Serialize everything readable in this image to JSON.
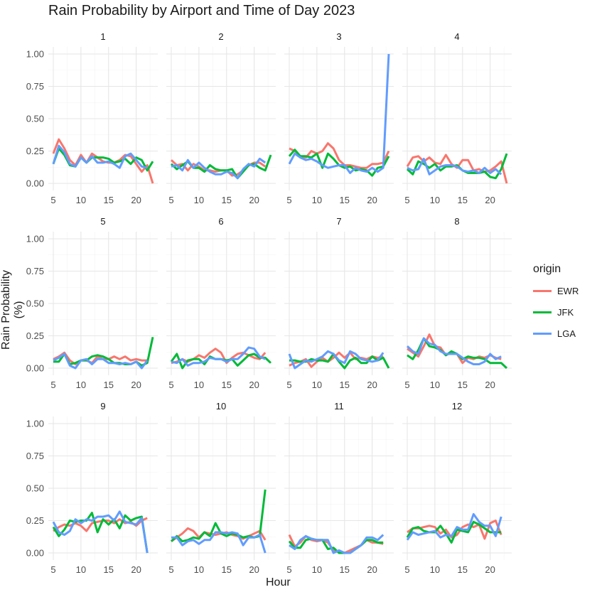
{
  "chart_data": {
    "type": "line",
    "title": "Rain Probability by Airport and Time of Day 2023",
    "xlabel": "Hour",
    "ylabel": "Rain Probability (%)",
    "xlim": [
      5,
      23
    ],
    "ylim": [
      0,
      1.0
    ],
    "x_ticks": [
      5,
      10,
      15,
      20
    ],
    "y_ticks": [
      "0.00",
      "0.25",
      "0.50",
      "0.75",
      "1.00"
    ],
    "grid": true,
    "legend": {
      "title": "origin",
      "placement": "right"
    },
    "hours": [
      5,
      6,
      7,
      8,
      9,
      10,
      11,
      12,
      13,
      14,
      15,
      16,
      17,
      18,
      19,
      20,
      21,
      22,
      23
    ],
    "series_names": [
      "EWR",
      "JFK",
      "LGA"
    ],
    "colors": {
      "EWR": "#F8766D",
      "JFK": "#00BA38",
      "LGA": "#619CFF"
    },
    "panels": [
      {
        "label": "1",
        "EWR": [
          0.23,
          0.34,
          0.27,
          0.18,
          0.14,
          0.22,
          0.16,
          0.23,
          0.2,
          0.17,
          0.16,
          0.16,
          0.18,
          0.22,
          0.21,
          0.15,
          0.09,
          0.14,
          0.0
        ],
        "JFK": [
          0.15,
          0.27,
          0.22,
          0.14,
          0.13,
          0.2,
          0.16,
          0.2,
          0.2,
          0.2,
          0.19,
          0.16,
          0.17,
          0.19,
          0.15,
          0.2,
          0.18,
          0.1,
          0.17
        ],
        "LGA": [
          0.15,
          0.29,
          0.24,
          0.15,
          0.13,
          0.2,
          0.16,
          0.21,
          0.16,
          0.16,
          0.17,
          0.15,
          0.12,
          0.21,
          0.23,
          0.18,
          0.13,
          0.12,
          null
        ]
      },
      {
        "label": "2",
        "EWR": [
          0.18,
          0.14,
          0.15,
          0.1,
          0.15,
          0.13,
          0.1,
          0.1,
          0.09,
          0.1,
          0.1,
          0.06,
          0.07,
          0.1,
          0.14,
          0.16,
          0.16,
          0.13,
          null
        ],
        "JFK": [
          0.15,
          0.11,
          0.14,
          0.17,
          0.12,
          0.12,
          0.09,
          0.14,
          0.11,
          0.1,
          0.1,
          0.11,
          0.04,
          0.09,
          0.14,
          0.15,
          0.12,
          0.1,
          0.22
        ],
        "LGA": [
          0.13,
          0.14,
          0.1,
          0.18,
          0.12,
          0.16,
          0.12,
          0.09,
          0.07,
          0.07,
          0.09,
          0.08,
          0.04,
          0.11,
          0.15,
          0.13,
          0.19,
          0.16,
          null
        ]
      },
      {
        "label": "3",
        "EWR": [
          0.27,
          0.25,
          0.21,
          0.2,
          0.25,
          0.23,
          0.25,
          0.31,
          0.27,
          0.18,
          0.14,
          0.14,
          0.13,
          0.12,
          0.12,
          0.15,
          0.15,
          0.16,
          0.25
        ],
        "JFK": [
          0.21,
          0.26,
          0.21,
          0.21,
          0.2,
          0.23,
          0.12,
          0.23,
          0.19,
          0.14,
          0.12,
          0.13,
          0.1,
          0.11,
          0.1,
          0.06,
          0.12,
          0.13,
          0.21
        ],
        "LGA": [
          0.15,
          0.23,
          0.2,
          0.18,
          0.19,
          0.17,
          0.14,
          0.12,
          0.13,
          0.14,
          0.14,
          0.08,
          0.12,
          0.1,
          0.09,
          0.12,
          0.09,
          0.12,
          1.0
        ]
      },
      {
        "label": "4",
        "EWR": [
          0.13,
          0.2,
          0.21,
          0.17,
          0.2,
          0.16,
          0.15,
          0.22,
          0.15,
          0.12,
          0.18,
          0.18,
          0.1,
          0.11,
          0.09,
          0.1,
          0.13,
          0.17,
          0.0
        ],
        "JFK": [
          0.11,
          0.07,
          0.17,
          0.15,
          0.12,
          0.15,
          0.1,
          0.13,
          0.13,
          0.14,
          0.1,
          0.08,
          0.08,
          0.08,
          0.09,
          0.05,
          0.04,
          0.11,
          0.23
        ],
        "LGA": [
          0.12,
          0.1,
          0.11,
          0.19,
          0.07,
          0.1,
          0.13,
          0.14,
          0.14,
          0.13,
          0.1,
          0.09,
          0.1,
          0.08,
          0.12,
          0.08,
          0.11,
          0.07,
          null
        ]
      },
      {
        "label": "5",
        "EWR": [
          0.07,
          0.09,
          0.12,
          0.06,
          0.03,
          0.06,
          0.06,
          0.04,
          0.09,
          0.07,
          0.07,
          0.09,
          0.07,
          0.09,
          0.06,
          0.07,
          0.06,
          0.06,
          null
        ],
        "JFK": [
          0.05,
          0.05,
          0.11,
          0.03,
          0.04,
          0.06,
          0.06,
          0.09,
          0.1,
          0.09,
          0.07,
          0.04,
          0.04,
          0.03,
          0.03,
          0.05,
          0.02,
          0.04,
          0.24
        ],
        "LGA": [
          0.06,
          0.08,
          0.11,
          0.02,
          0.0,
          0.06,
          0.07,
          0.03,
          0.07,
          0.07,
          0.04,
          0.04,
          0.03,
          0.04,
          0.03,
          0.05,
          0.0,
          0.06,
          null
        ]
      },
      {
        "label": "6",
        "EWR": [
          0.04,
          0.05,
          0.07,
          0.05,
          0.07,
          0.1,
          0.08,
          0.12,
          0.15,
          0.12,
          0.04,
          0.08,
          0.11,
          0.12,
          0.1,
          0.08,
          0.07,
          0.12,
          null
        ],
        "JFK": [
          0.05,
          0.11,
          0.0,
          0.06,
          0.07,
          0.07,
          0.03,
          0.09,
          0.07,
          0.07,
          0.06,
          0.07,
          0.02,
          0.06,
          0.1,
          0.11,
          0.08,
          0.08,
          0.04
        ],
        "LGA": [
          0.05,
          0.04,
          0.07,
          0.02,
          0.04,
          0.04,
          0.05,
          0.08,
          0.07,
          0.07,
          0.05,
          0.07,
          0.07,
          0.11,
          0.16,
          0.15,
          0.09,
          0.07,
          null
        ]
      },
      {
        "label": "7",
        "EWR": [
          0.02,
          0.04,
          0.05,
          0.07,
          0.01,
          0.05,
          0.08,
          0.05,
          0.08,
          0.12,
          0.08,
          0.12,
          0.07,
          0.08,
          0.07,
          0.09,
          0.08,
          0.09,
          null
        ],
        "JFK": [
          0.06,
          0.06,
          0.05,
          0.05,
          0.07,
          0.06,
          0.06,
          0.05,
          0.11,
          0.05,
          0.0,
          0.06,
          0.08,
          0.04,
          0.04,
          0.09,
          0.06,
          0.08,
          0.0
        ],
        "LGA": [
          0.11,
          0.0,
          0.03,
          0.06,
          0.05,
          0.07,
          0.09,
          0.13,
          0.11,
          0.06,
          0.04,
          0.13,
          0.11,
          0.07,
          0.06,
          0.05,
          0.06,
          0.12,
          null
        ]
      },
      {
        "label": "8",
        "EWR": [
          0.15,
          0.12,
          0.09,
          0.17,
          0.26,
          0.17,
          0.16,
          0.1,
          0.12,
          0.11,
          0.04,
          0.08,
          0.07,
          0.09,
          0.08,
          0.1,
          0.08,
          0.07,
          null
        ],
        "JFK": [
          0.1,
          0.07,
          0.14,
          0.23,
          0.17,
          0.16,
          0.14,
          0.1,
          0.13,
          0.11,
          0.07,
          0.09,
          0.08,
          0.08,
          0.07,
          0.04,
          0.04,
          0.04,
          0.0
        ],
        "LGA": [
          0.17,
          0.13,
          0.11,
          0.23,
          0.19,
          0.18,
          0.13,
          0.11,
          0.11,
          0.11,
          0.08,
          0.05,
          0.03,
          0.03,
          0.05,
          0.11,
          0.07,
          0.09,
          null
        ]
      },
      {
        "label": "9",
        "EWR": [
          0.17,
          0.2,
          0.22,
          0.21,
          0.23,
          0.21,
          0.17,
          0.23,
          0.24,
          0.25,
          0.25,
          0.23,
          0.26,
          0.23,
          0.24,
          0.21,
          0.25,
          0.27,
          null
        ],
        "JFK": [
          0.2,
          0.13,
          0.18,
          0.25,
          0.24,
          0.25,
          0.25,
          0.31,
          0.16,
          0.26,
          0.22,
          0.26,
          0.19,
          0.29,
          0.25,
          0.27,
          0.28,
          0.0,
          null
        ],
        "LGA": [
          0.24,
          0.16,
          0.14,
          0.17,
          0.26,
          0.23,
          0.26,
          0.25,
          0.28,
          0.28,
          0.29,
          0.25,
          0.32,
          0.24,
          0.23,
          0.22,
          0.27,
          0.0,
          null
        ]
      },
      {
        "label": "10",
        "EWR": [
          0.09,
          0.12,
          0.15,
          0.19,
          0.17,
          0.12,
          0.16,
          0.15,
          0.14,
          0.15,
          0.16,
          0.14,
          0.13,
          0.11,
          0.13,
          0.15,
          0.17,
          0.1,
          null
        ],
        "JFK": [
          0.09,
          0.13,
          0.09,
          0.1,
          0.12,
          0.11,
          0.16,
          0.13,
          0.23,
          0.15,
          0.13,
          0.15,
          0.14,
          0.12,
          0.13,
          0.12,
          0.13,
          0.49,
          null
        ],
        "LGA": [
          0.12,
          0.12,
          0.06,
          0.09,
          0.1,
          0.07,
          0.1,
          0.1,
          0.16,
          0.16,
          0.15,
          0.16,
          0.15,
          0.06,
          0.12,
          0.12,
          0.14,
          0.0,
          null
        ]
      },
      {
        "label": "11",
        "EWR": [
          0.14,
          0.05,
          0.08,
          0.13,
          0.1,
          0.09,
          0.1,
          0.08,
          0.02,
          0.01,
          0.0,
          0.02,
          0.04,
          0.06,
          0.1,
          0.08,
          0.08,
          0.07,
          null
        ],
        "JFK": [
          0.09,
          0.04,
          0.04,
          0.1,
          0.11,
          0.1,
          0.1,
          0.03,
          0.04,
          0.0,
          0.0,
          0.0,
          0.03,
          0.06,
          0.1,
          0.1,
          0.08,
          0.08,
          null
        ],
        "LGA": [
          0.06,
          0.03,
          0.1,
          0.13,
          0.11,
          0.1,
          0.1,
          0.1,
          0.0,
          0.02,
          0.0,
          0.0,
          0.03,
          0.06,
          0.12,
          0.12,
          0.1,
          0.14,
          null
        ]
      },
      {
        "label": "12",
        "EWR": [
          0.16,
          0.19,
          0.19,
          0.2,
          0.21,
          0.2,
          0.15,
          0.18,
          0.12,
          0.14,
          0.2,
          0.22,
          0.2,
          0.22,
          0.11,
          0.23,
          0.25,
          0.14,
          null
        ],
        "JFK": [
          0.12,
          0.19,
          0.2,
          0.17,
          0.16,
          0.16,
          0.21,
          0.15,
          0.08,
          0.18,
          0.17,
          0.16,
          0.24,
          0.22,
          0.19,
          0.16,
          0.16,
          0.16,
          null
        ],
        "LGA": [
          0.1,
          0.16,
          0.14,
          0.15,
          0.16,
          0.17,
          0.12,
          0.14,
          0.13,
          0.2,
          0.18,
          0.18,
          0.3,
          0.24,
          0.21,
          0.21,
          0.13,
          0.28,
          null
        ]
      }
    ]
  }
}
